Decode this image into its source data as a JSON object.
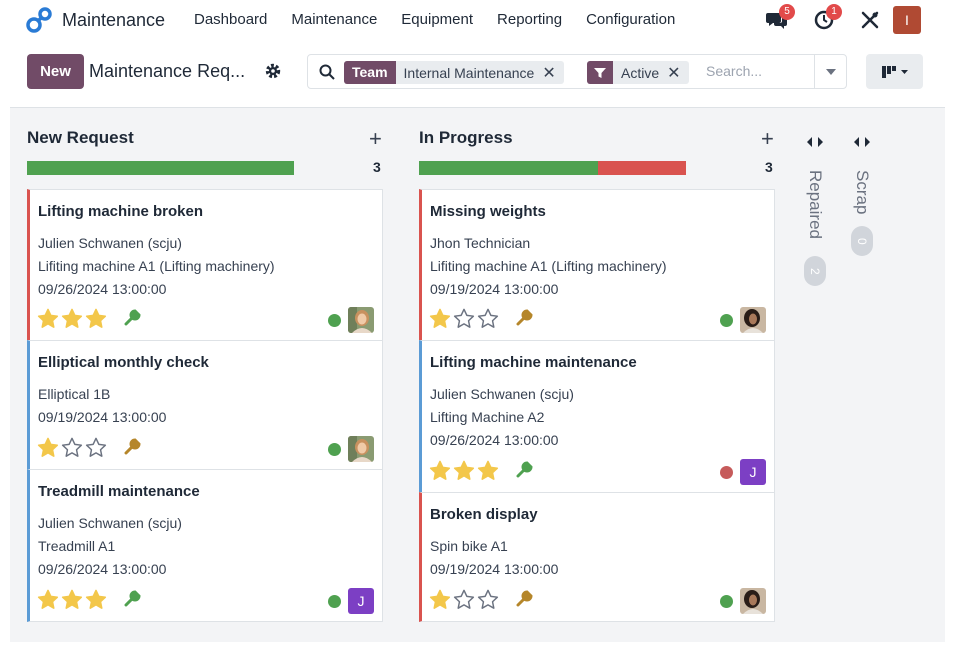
{
  "app": {
    "title": "Maintenance",
    "menu": [
      "Dashboard",
      "Maintenance",
      "Equipment",
      "Reporting",
      "Configuration"
    ],
    "systray": {
      "chat_count": "5",
      "activity_count": "1",
      "user_initial": "I"
    }
  },
  "control_panel": {
    "new_label": "New",
    "breadcrumb": "Maintenance Req...",
    "facets": [
      {
        "label": "Team",
        "value": "Internal Maintenance"
      },
      {
        "label": "",
        "value": "Active"
      }
    ],
    "search_placeholder": "Search..."
  },
  "columns": [
    {
      "title": "New Request",
      "count": "3",
      "progress": [
        {
          "color": "#4fa150",
          "fraction": 1.0
        }
      ],
      "cards": [
        {
          "title": "Lifting machine broken",
          "lines": [
            "Julien Schwanen (scju)",
            "Lifiting machine A1 (Lifting machinery)",
            "09/26/2024 13:00:00"
          ],
          "stars": 3,
          "accent": "#d9534f",
          "status_color": "#4fa150",
          "avatar": "photo-a"
        },
        {
          "title": "Elliptical monthly check",
          "lines": [
            "Elliptical 1B",
            "09/19/2024 13:00:00"
          ],
          "stars": 1,
          "accent": "#5b9bd5",
          "status_color": "#4fa150",
          "avatar": "photo-a"
        },
        {
          "title": "Treadmill maintenance",
          "lines": [
            "Julien Schwanen (scju)",
            "Treadmill A1",
            "09/26/2024 13:00:00"
          ],
          "stars": 3,
          "accent": "#5b9bd5",
          "status_color": "#4fa150",
          "avatar": "J"
        }
      ]
    },
    {
      "title": "In Progress",
      "count": "3",
      "progress": [
        {
          "color": "#4fa150",
          "fraction": 0.67
        },
        {
          "color": "#d9534f",
          "fraction": 0.33
        }
      ],
      "cards": [
        {
          "title": "Missing weights",
          "lines": [
            "Jhon Technician",
            "Lifiting machine A1 (Lifting machinery)",
            "09/19/2024 13:00:00"
          ],
          "stars": 1,
          "accent": "#d9534f",
          "status_color": "#4fa150",
          "avatar": "photo-b"
        },
        {
          "title": "Lifting machine maintenance",
          "lines": [
            "Julien Schwanen (scju)",
            "Lifting Machine A2",
            "09/26/2024 13:00:00"
          ],
          "stars": 3,
          "accent": "#5b9bd5",
          "status_color": "#c65b5b",
          "avatar": "J"
        },
        {
          "title": "Broken display",
          "lines": [
            "Spin bike A1",
            "09/19/2024 13:00:00"
          ],
          "stars": 1,
          "accent": "#d9534f",
          "status_color": "#4fa150",
          "avatar": "photo-b"
        }
      ]
    }
  ],
  "folded_columns": [
    {
      "title": "Repaired",
      "count": "2"
    },
    {
      "title": "Scrap",
      "count": "0"
    }
  ],
  "colors": {
    "brand": "#714b67",
    "star_filled": "#f3c74a",
    "star_empty": "#6b7280",
    "wrench_green": "#4fa150",
    "wrench_brown": "#b5862a"
  }
}
